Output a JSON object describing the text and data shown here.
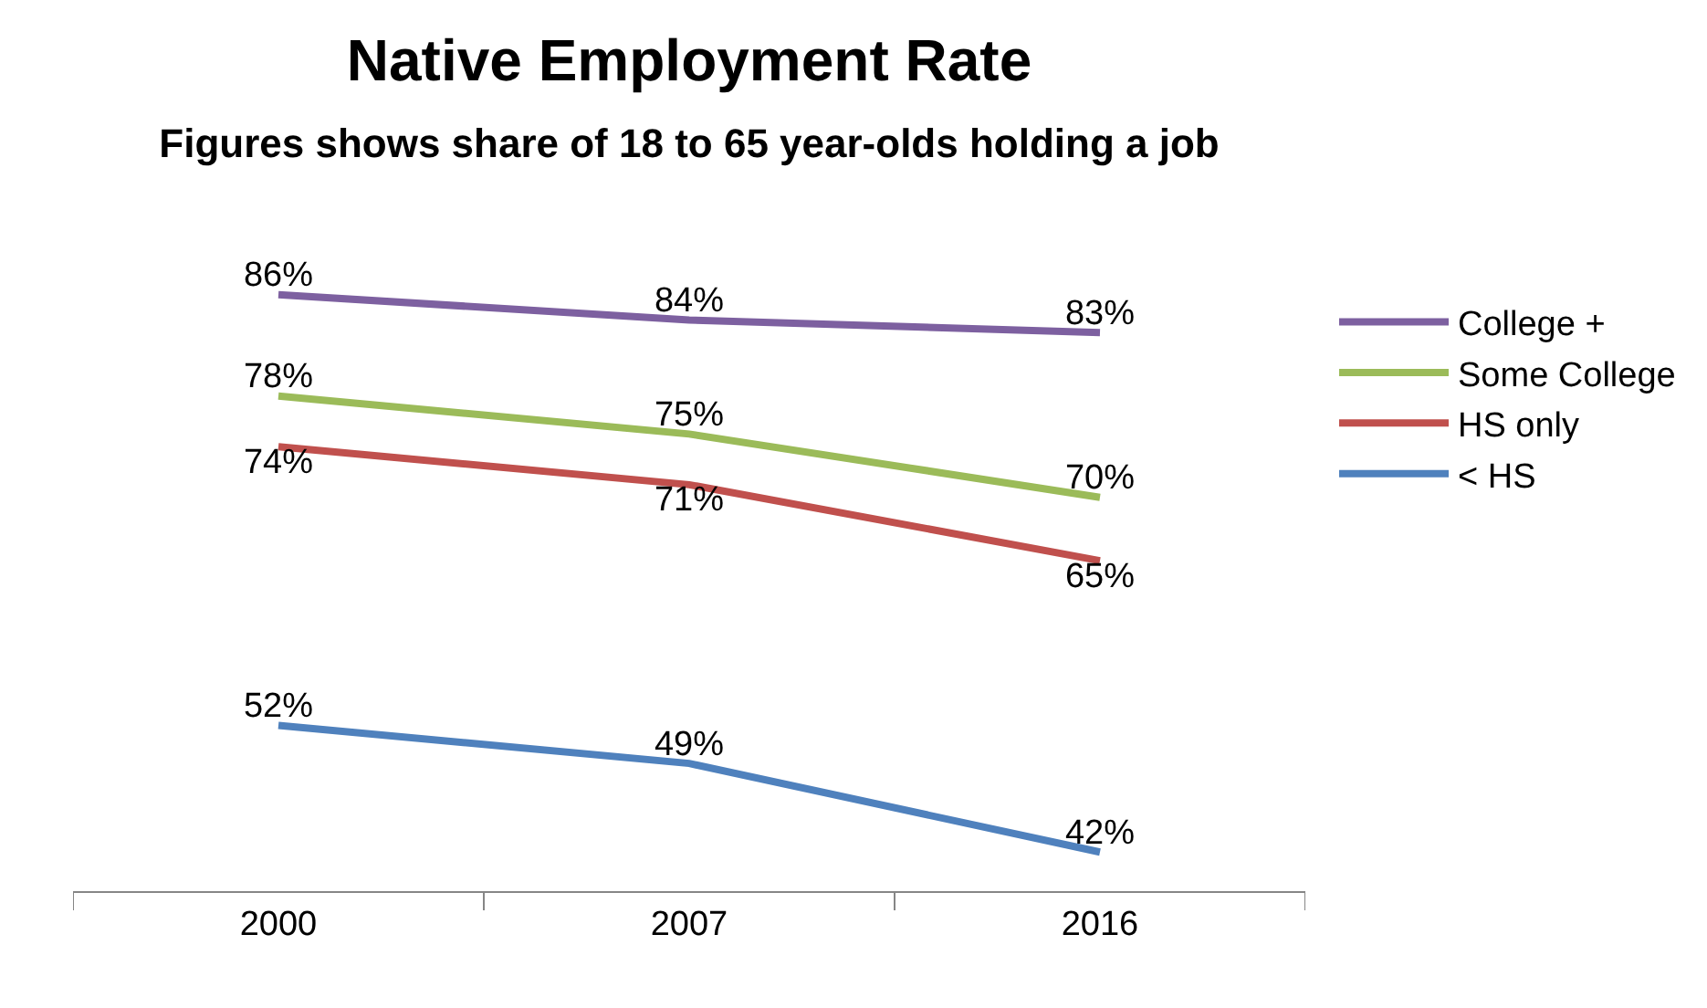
{
  "chart_data": {
    "type": "line",
    "title": "Native Employment Rate",
    "subtitle": "Figures shows share of 18 to 65 year-olds holding a job",
    "categories": [
      "2000",
      "2007",
      "2016"
    ],
    "series": [
      {
        "name": "College +",
        "color": "#7d60a0",
        "values": [
          86,
          84,
          83
        ],
        "value_labels": [
          "86%",
          "84%",
          "83%"
        ]
      },
      {
        "name": "Some College",
        "color": "#9bbb59",
        "values": [
          78,
          75,
          70
        ],
        "value_labels": [
          "78%",
          "75%",
          "70%"
        ]
      },
      {
        "name": "HS only",
        "color": "#c0504d",
        "values": [
          74,
          71,
          65
        ],
        "value_labels": [
          "74%",
          "71%",
          "65%"
        ]
      },
      {
        "name": "< HS",
        "color": "#4f81bd",
        "values": [
          52,
          49,
          42
        ],
        "value_labels": [
          "52%",
          "49%",
          "42%"
        ]
      }
    ],
    "tick_labels": "x",
    "grid": false,
    "legend": "right",
    "marker": "none",
    "line_style": "solid"
  }
}
